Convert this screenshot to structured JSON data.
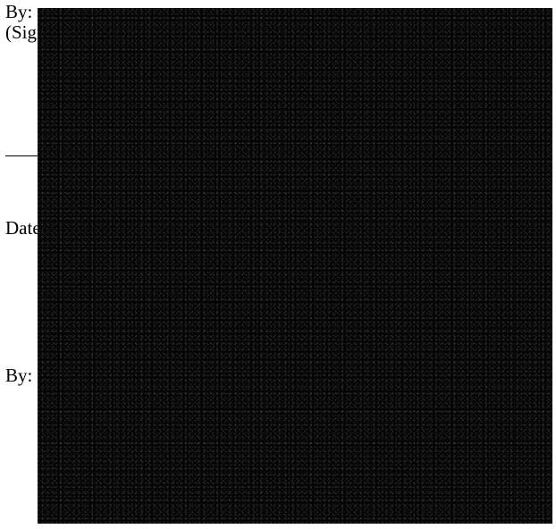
{
  "form": {
    "by_label_1": "By:",
    "signature_label": "(Signature)",
    "date_label": "Date",
    "by_label_2": "By:"
  },
  "redaction": {
    "color": "#050505"
  }
}
